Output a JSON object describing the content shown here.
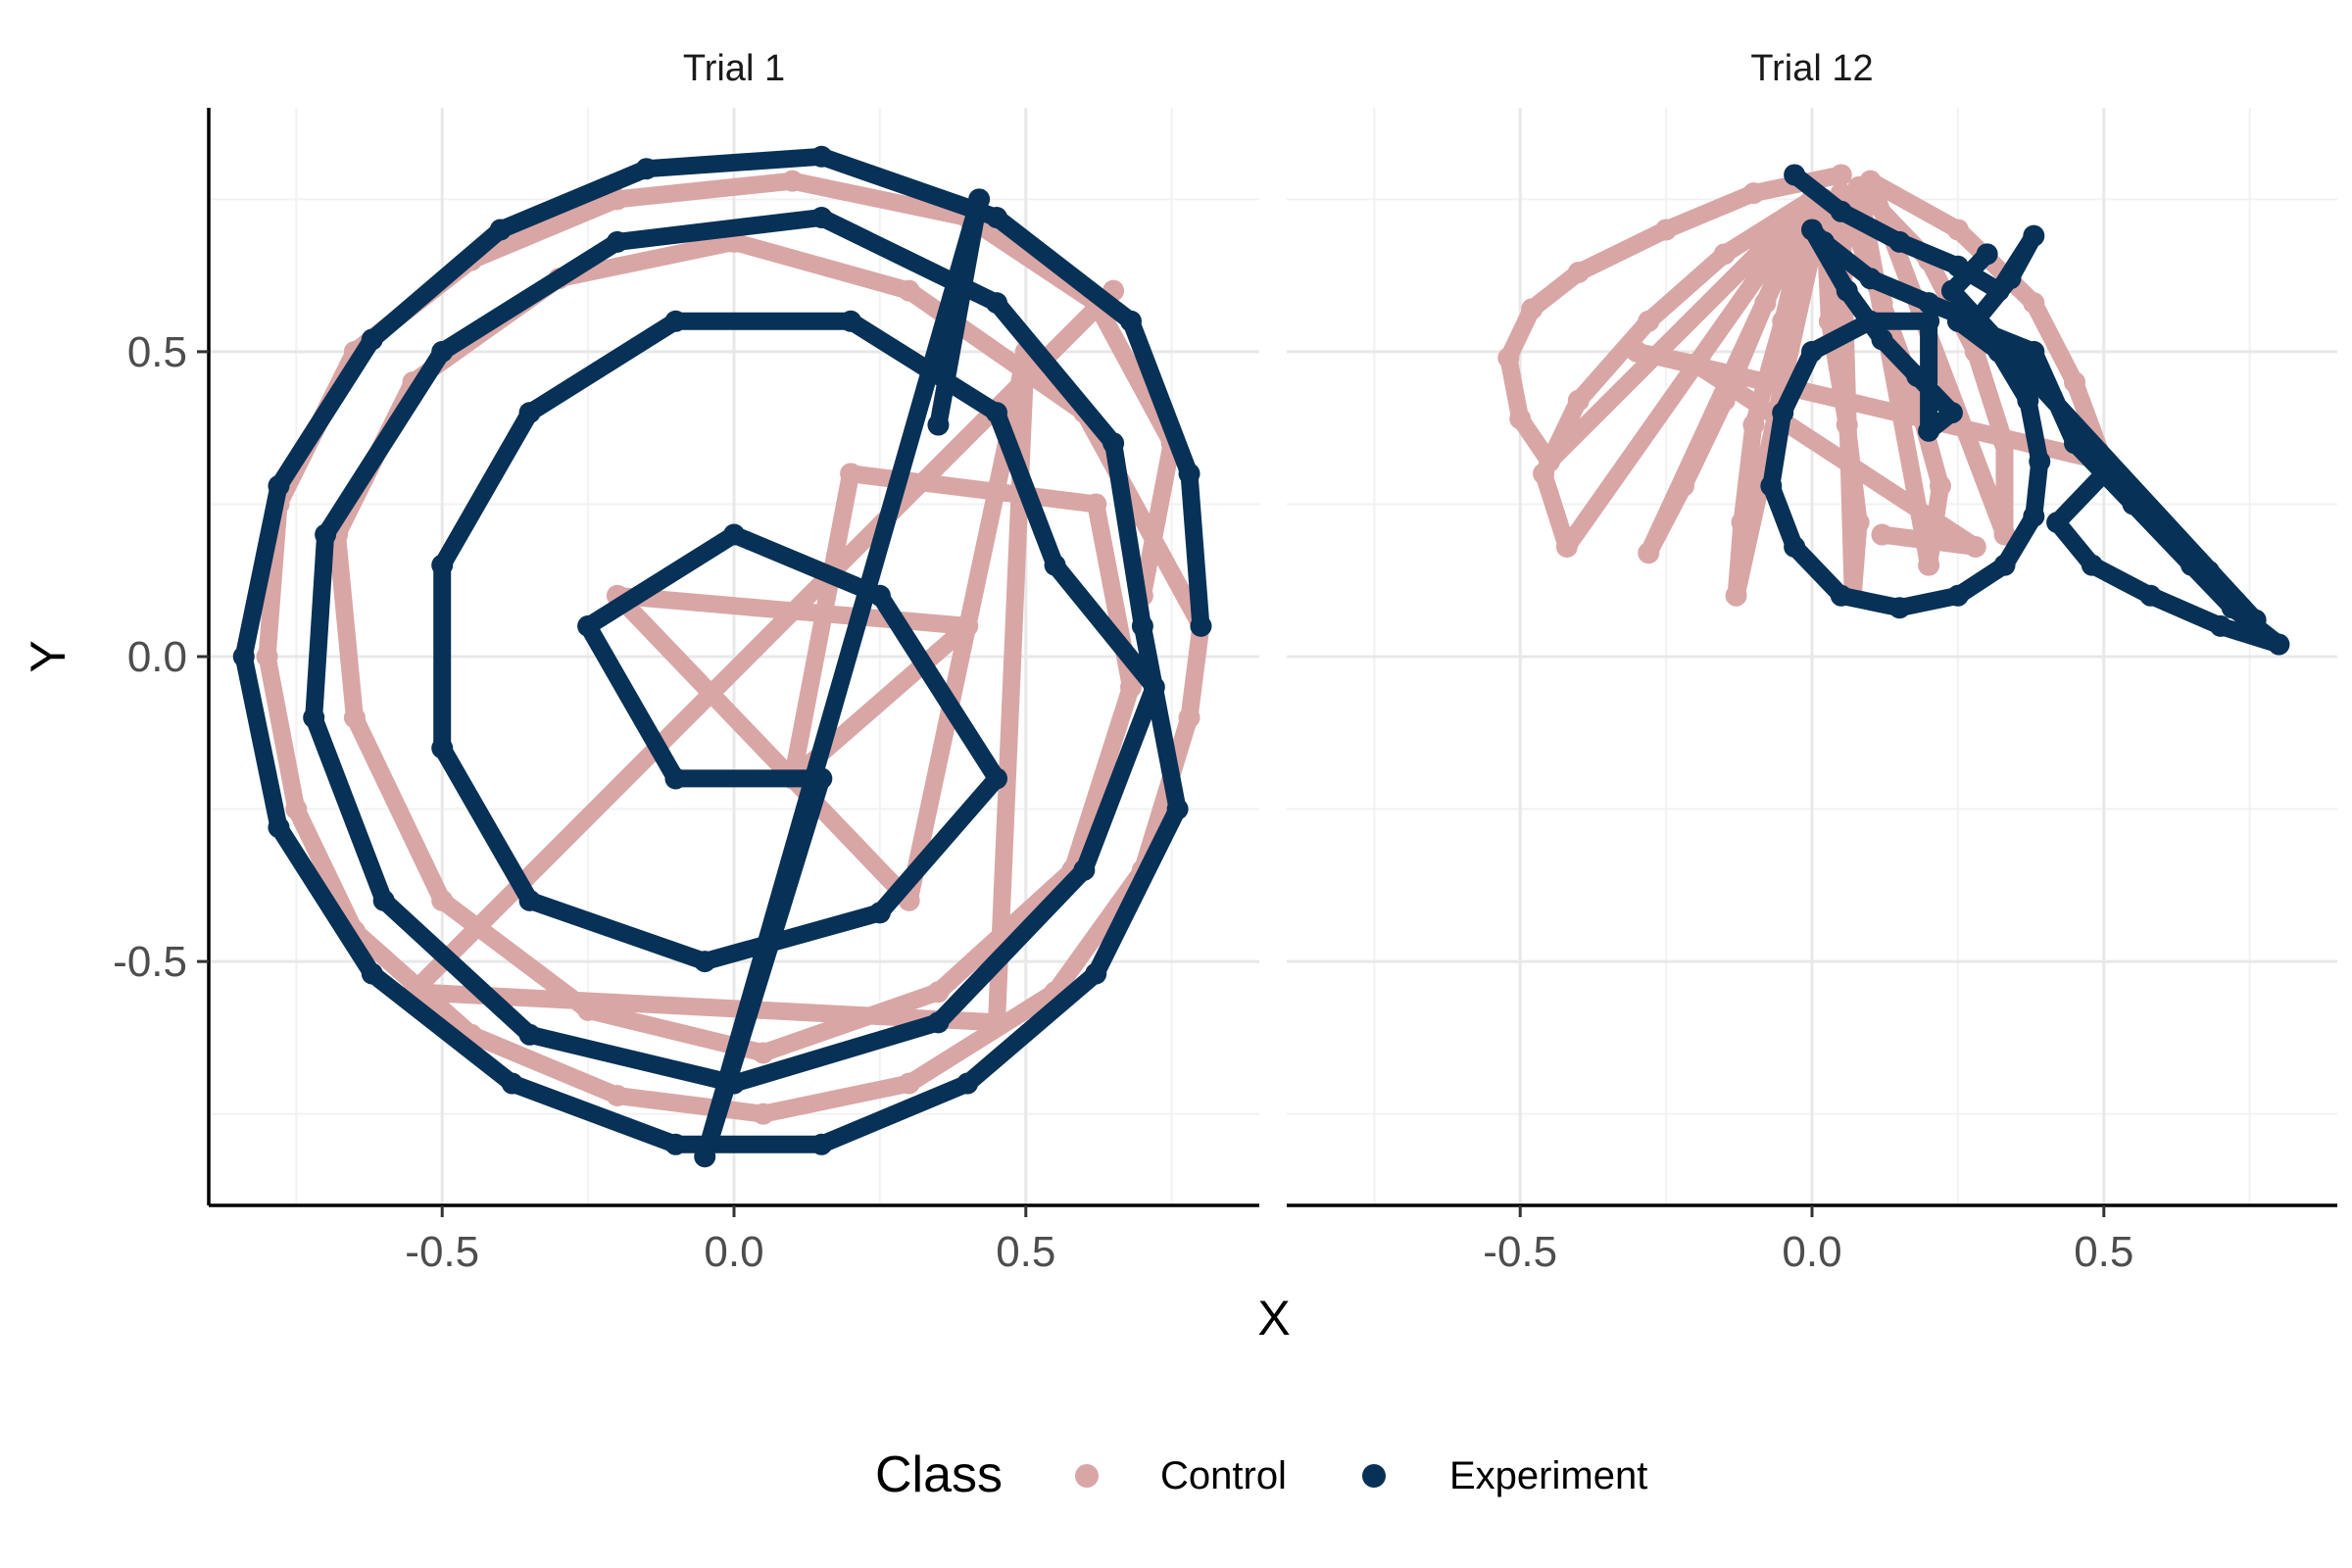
{
  "chart_data": {
    "type": "scatter",
    "facet_titles": [
      "Trial 1",
      "Trial 12"
    ],
    "xlabel": "X",
    "ylabel": "Y",
    "xlim": [
      -0.9,
      0.9
    ],
    "ylim": [
      -0.9,
      0.9
    ],
    "x_ticks": [
      -0.5,
      0.0,
      0.5
    ],
    "y_ticks": [
      -0.5,
      0.0,
      0.5
    ],
    "x_tick_labels": [
      "-0.5",
      "0.0",
      "0.5"
    ],
    "y_tick_labels": [
      "-0.5",
      "0.0",
      "0.5"
    ],
    "grid": true,
    "legend_title": "Class",
    "legend_position": "bottom",
    "series_colors": {
      "Control": "#D9A6A6",
      "Experiment": "#073156"
    },
    "panels": [
      {
        "title": "Trial 1",
        "series": [
          {
            "name": "Control",
            "points": [
              [
                0.7,
                0.1
              ],
              [
                0.75,
                0.35
              ],
              [
                0.62,
                0.58
              ],
              [
                0.4,
                0.72
              ],
              [
                0.1,
                0.78
              ],
              [
                -0.2,
                0.75
              ],
              [
                -0.45,
                0.65
              ],
              [
                -0.65,
                0.5
              ],
              [
                -0.78,
                0.25
              ],
              [
                -0.8,
                0.0
              ],
              [
                -0.75,
                -0.25
              ],
              [
                -0.65,
                -0.45
              ],
              [
                -0.45,
                -0.62
              ],
              [
                -0.2,
                -0.72
              ],
              [
                0.05,
                -0.75
              ],
              [
                0.3,
                -0.7
              ],
              [
                0.55,
                -0.55
              ],
              [
                0.7,
                -0.35
              ],
              [
                0.78,
                -0.1
              ],
              [
                0.8,
                0.05
              ],
              [
                0.6,
                0.4
              ],
              [
                0.3,
                0.6
              ],
              [
                0.0,
                0.68
              ],
              [
                -0.3,
                0.62
              ],
              [
                -0.55,
                0.45
              ],
              [
                -0.68,
                0.2
              ],
              [
                -0.65,
                -0.1
              ],
              [
                -0.5,
                -0.4
              ],
              [
                -0.25,
                -0.58
              ],
              [
                0.05,
                -0.65
              ],
              [
                0.35,
                -0.55
              ],
              [
                0.58,
                -0.35
              ],
              [
                0.68,
                -0.05
              ],
              [
                0.62,
                0.25
              ],
              [
                0.2,
                0.3
              ],
              [
                0.1,
                -0.2
              ],
              [
                0.4,
                0.05
              ],
              [
                -0.2,
                0.1
              ],
              [
                0.3,
                -0.4
              ],
              [
                0.5,
                0.5
              ],
              [
                0.45,
                -0.6
              ],
              [
                -0.55,
                -0.55
              ],
              [
                0.65,
                0.6
              ]
            ]
          },
          {
            "name": "Experiment",
            "points": [
              [
                0.8,
                0.05
              ],
              [
                0.78,
                0.3
              ],
              [
                0.68,
                0.55
              ],
              [
                0.45,
                0.72
              ],
              [
                0.15,
                0.82
              ],
              [
                -0.15,
                0.8
              ],
              [
                -0.4,
                0.7
              ],
              [
                -0.62,
                0.52
              ],
              [
                -0.78,
                0.28
              ],
              [
                -0.84,
                0.0
              ],
              [
                -0.78,
                -0.28
              ],
              [
                -0.62,
                -0.52
              ],
              [
                -0.38,
                -0.7
              ],
              [
                -0.1,
                -0.8
              ],
              [
                0.15,
                -0.8
              ],
              [
                0.4,
                -0.7
              ],
              [
                0.62,
                -0.52
              ],
              [
                0.76,
                -0.25
              ],
              [
                0.7,
                0.05
              ],
              [
                0.65,
                0.35
              ],
              [
                0.45,
                0.58
              ],
              [
                0.15,
                0.72
              ],
              [
                -0.2,
                0.68
              ],
              [
                -0.5,
                0.5
              ],
              [
                -0.7,
                0.2
              ],
              [
                -0.72,
                -0.1
              ],
              [
                -0.6,
                -0.4
              ],
              [
                -0.35,
                -0.62
              ],
              [
                0.0,
                -0.7
              ],
              [
                0.35,
                -0.6
              ],
              [
                0.6,
                -0.35
              ],
              [
                0.72,
                -0.05
              ],
              [
                0.55,
                0.15
              ],
              [
                0.45,
                0.4
              ],
              [
                0.2,
                0.55
              ],
              [
                -0.1,
                0.55
              ],
              [
                -0.35,
                0.4
              ],
              [
                -0.5,
                0.15
              ],
              [
                -0.5,
                -0.15
              ],
              [
                -0.35,
                -0.4
              ],
              [
                -0.05,
                -0.5
              ],
              [
                0.25,
                -0.42
              ],
              [
                0.45,
                -0.2
              ],
              [
                0.25,
                0.1
              ],
              [
                0.0,
                0.2
              ],
              [
                -0.25,
                0.05
              ],
              [
                -0.1,
                -0.2
              ],
              [
                0.15,
                -0.2
              ],
              [
                -0.05,
                -0.82
              ],
              [
                0.42,
                0.75
              ],
              [
                0.35,
                0.38
              ]
            ]
          }
        ]
      },
      {
        "title": "Trial 12",
        "series": [
          {
            "name": "Control",
            "points": [
              [
                0.05,
                0.79
              ],
              [
                -0.1,
                0.76
              ],
              [
                -0.25,
                0.7
              ],
              [
                -0.4,
                0.63
              ],
              [
                -0.48,
                0.57
              ],
              [
                -0.52,
                0.49
              ],
              [
                -0.5,
                0.39
              ],
              [
                -0.45,
                0.32
              ],
              [
                0.0,
                0.75
              ],
              [
                -0.15,
                0.66
              ],
              [
                -0.28,
                0.55
              ],
              [
                -0.4,
                0.42
              ],
              [
                -0.46,
                0.3
              ],
              [
                -0.42,
                0.18
              ],
              [
                0.0,
                0.75
              ],
              [
                -0.08,
                0.58
              ],
              [
                -0.15,
                0.42
              ],
              [
                -0.22,
                0.28
              ],
              [
                -0.28,
                0.17
              ],
              [
                0.0,
                0.75
              ],
              [
                -0.05,
                0.55
              ],
              [
                -0.1,
                0.38
              ],
              [
                -0.12,
                0.22
              ],
              [
                -0.13,
                0.1
              ],
              [
                0.02,
                0.75
              ],
              [
                0.03,
                0.55
              ],
              [
                0.06,
                0.38
              ],
              [
                0.08,
                0.22
              ],
              [
                0.07,
                0.1
              ],
              [
                0.05,
                0.76
              ],
              [
                0.12,
                0.58
              ],
              [
                0.18,
                0.42
              ],
              [
                0.22,
                0.28
              ],
              [
                0.2,
                0.15
              ],
              [
                0.08,
                0.77
              ],
              [
                0.2,
                0.65
              ],
              [
                0.28,
                0.5
              ],
              [
                0.33,
                0.35
              ],
              [
                0.33,
                0.2
              ],
              [
                0.1,
                0.78
              ],
              [
                0.25,
                0.7
              ],
              [
                0.38,
                0.58
              ],
              [
                0.45,
                0.45
              ],
              [
                0.5,
                0.32
              ],
              [
                -0.3,
                0.5
              ],
              [
                -0.2,
                0.48
              ],
              [
                0.28,
                0.18
              ],
              [
                0.12,
                0.2
              ]
            ]
          },
          {
            "name": "Experiment",
            "points": [
              [
                -0.03,
                0.79
              ],
              [
                0.05,
                0.73
              ],
              [
                0.15,
                0.68
              ],
              [
                0.25,
                0.64
              ],
              [
                0.32,
                0.6
              ],
              [
                0.38,
                0.69
              ],
              [
                0.34,
                0.62
              ],
              [
                0.28,
                0.55
              ],
              [
                0.2,
                0.58
              ],
              [
                0.1,
                0.62
              ],
              [
                0.02,
                0.68
              ],
              [
                0.0,
                0.7
              ],
              [
                0.06,
                0.6
              ],
              [
                0.12,
                0.52
              ],
              [
                0.18,
                0.46
              ],
              [
                0.24,
                0.4
              ],
              [
                0.2,
                0.37
              ],
              [
                0.2,
                0.55
              ],
              [
                0.1,
                0.55
              ],
              [
                0.0,
                0.5
              ],
              [
                -0.05,
                0.4
              ],
              [
                -0.07,
                0.28
              ],
              [
                -0.03,
                0.18
              ],
              [
                0.05,
                0.1
              ],
              [
                0.15,
                0.08
              ],
              [
                0.25,
                0.1
              ],
              [
                0.33,
                0.15
              ],
              [
                0.38,
                0.23
              ],
              [
                0.39,
                0.32
              ],
              [
                0.37,
                0.42
              ],
              [
                0.32,
                0.5
              ],
              [
                0.25,
                0.55
              ],
              [
                0.38,
                0.5
              ],
              [
                0.45,
                0.35
              ],
              [
                0.55,
                0.25
              ],
              [
                0.65,
                0.15
              ],
              [
                0.72,
                0.08
              ],
              [
                0.8,
                0.02
              ],
              [
                0.7,
                0.05
              ],
              [
                0.58,
                0.1
              ],
              [
                0.48,
                0.15
              ],
              [
                0.42,
                0.22
              ],
              [
                0.5,
                0.3
              ],
              [
                0.6,
                0.22
              ],
              [
                0.68,
                0.14
              ],
              [
                0.76,
                0.06
              ],
              [
                0.24,
                0.6
              ],
              [
                0.3,
                0.66
              ]
            ]
          }
        ]
      }
    ]
  }
}
